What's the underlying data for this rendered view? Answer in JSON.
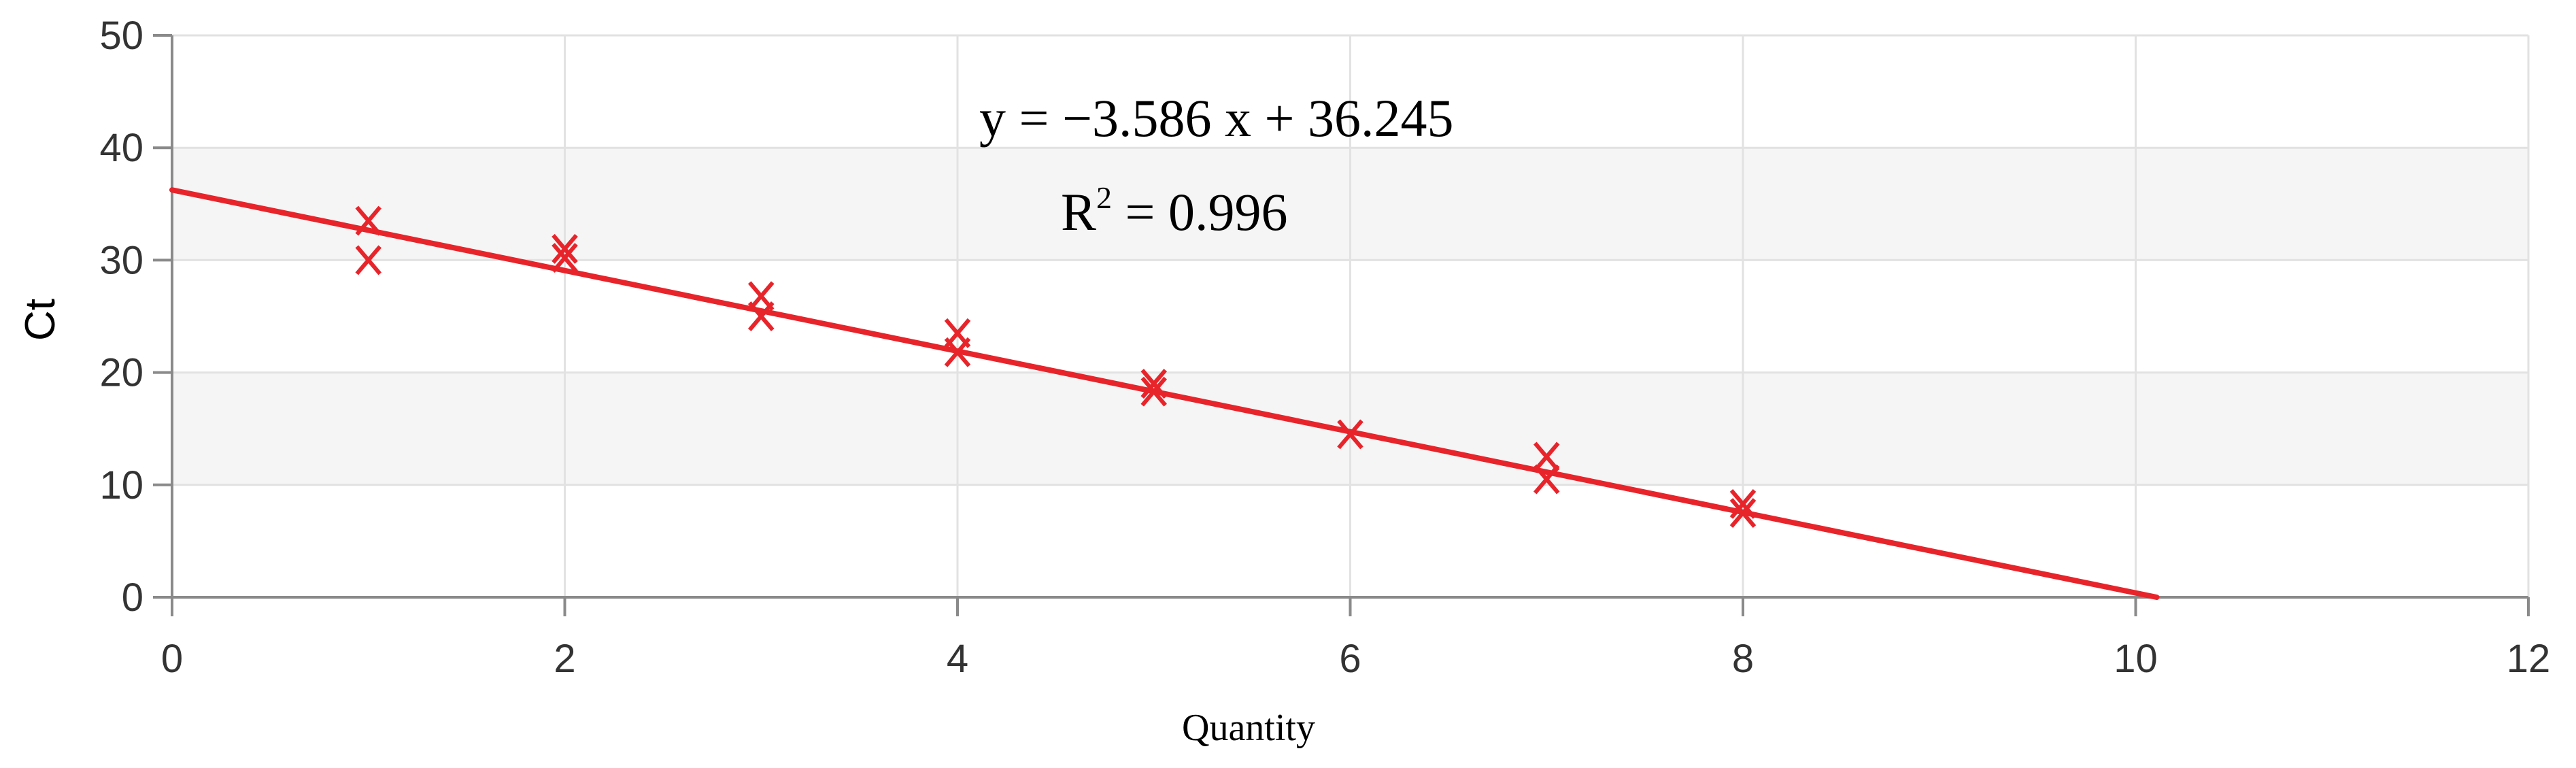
{
  "chart_data": {
    "type": "scatter",
    "xlabel": "Quantity",
    "ylabel": "Ct",
    "xlim": [
      0,
      12
    ],
    "ylim": [
      0,
      50
    ],
    "xticks": [
      "0",
      "2",
      "4",
      "6",
      "8",
      "10",
      "12"
    ],
    "yticks": [
      "0",
      "10",
      "20",
      "30",
      "40",
      "50"
    ],
    "grid": true,
    "points": [
      {
        "x": 1,
        "y": 33.5
      },
      {
        "x": 1,
        "y": 30.0
      },
      {
        "x": 2,
        "y": 31.0
      },
      {
        "x": 2,
        "y": 30.2
      },
      {
        "x": 3,
        "y": 26.8
      },
      {
        "x": 3,
        "y": 25.0
      },
      {
        "x": 4,
        "y": 23.5
      },
      {
        "x": 4,
        "y": 21.8
      },
      {
        "x": 5,
        "y": 19.0
      },
      {
        "x": 5,
        "y": 18.3
      },
      {
        "x": 6,
        "y": 14.5
      },
      {
        "x": 7,
        "y": 12.5
      },
      {
        "x": 7,
        "y": 10.5
      },
      {
        "x": 8,
        "y": 8.3
      },
      {
        "x": 8,
        "y": 7.5
      }
    ],
    "trendline": {
      "slope": -3.586,
      "intercept": 36.245,
      "equation": "y = −3.586 x + 36.245",
      "r2_prefix": "R",
      "r2_exponent": "2",
      "r2_value": " = 0.996"
    },
    "colors": {
      "series": "#e8242b",
      "band": "#f5f5f5",
      "grid": "#e2e2e2",
      "axis": "#8a8a8a"
    }
  }
}
